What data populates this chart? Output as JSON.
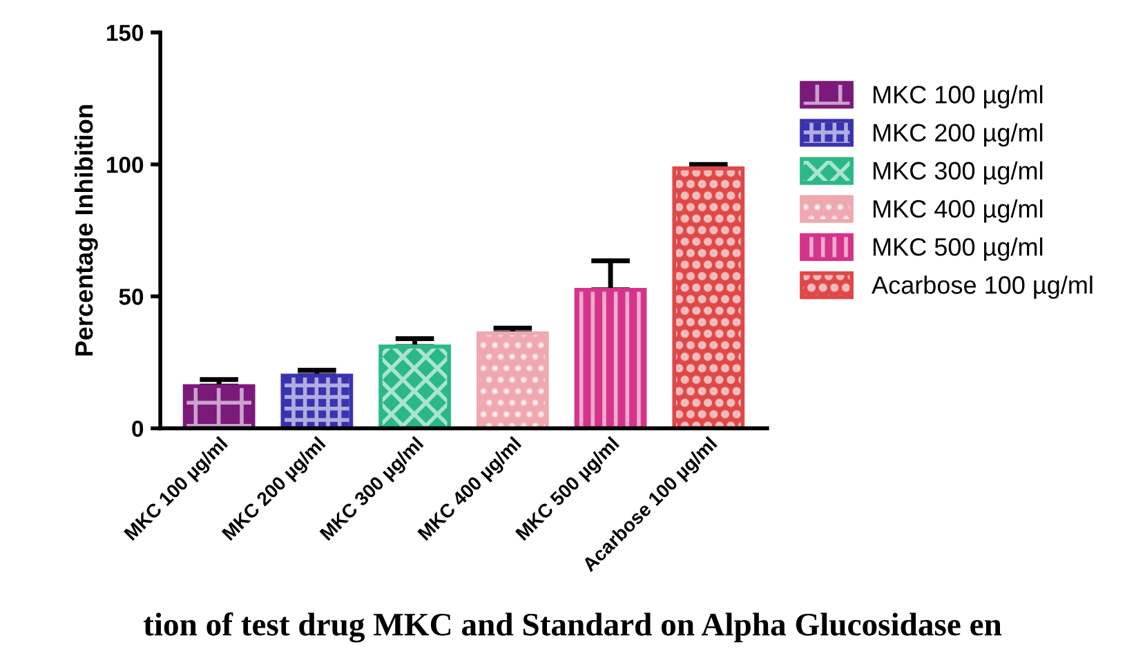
{
  "chart_data": {
    "type": "bar",
    "ylabel": "Percentage Inhibition",
    "categories": [
      "MKC 100 µg/ml",
      "MKC 200 µg/ml",
      "MKC 300 µg/ml",
      "MKC 400 µg/ml",
      "MKC 500 µg/ml",
      "Acarbose 100 µg/ml"
    ],
    "series": [
      {
        "name": "MKC 100 µg/ml",
        "color": "#7b1a7b",
        "values": [
          16,
          null,
          null,
          null,
          null,
          null
        ],
        "errors": [
          [
            16,
            18.5
          ],
          null,
          null,
          null,
          null,
          null
        ]
      },
      {
        "name": "MKC 200 µg/ml",
        "color": "#3a33b0",
        "values": [
          null,
          20,
          null,
          null,
          null,
          null
        ],
        "errors": [
          null,
          [
            20,
            22
          ],
          null,
          null,
          null,
          null
        ]
      },
      {
        "name": "MKC 300 µg/ml",
        "color": "#2ab889",
        "values": [
          null,
          null,
          31,
          null,
          null,
          null
        ],
        "errors": [
          null,
          null,
          [
            31,
            34
          ],
          null,
          null,
          null
        ]
      },
      {
        "name": "MKC 400 µg/ml",
        "color": "#f0a8b0",
        "values": [
          null,
          null,
          null,
          36,
          null,
          null
        ],
        "errors": [
          null,
          null,
          null,
          [
            36,
            38
          ],
          null,
          null
        ]
      },
      {
        "name": "MKC 500 µg/ml",
        "color": "#d6338a",
        "values": [
          null,
          null,
          null,
          null,
          52.5,
          null
        ],
        "errors": [
          null,
          null,
          null,
          null,
          [
            52.5,
            63.5
          ],
          null
        ]
      },
      {
        "name": "Acarbose 100 µg/ml",
        "color": "#e04848",
        "values": [
          null,
          null,
          null,
          null,
          null,
          98.5
        ],
        "errors": [
          null,
          null,
          null,
          null,
          null,
          [
            98.5,
            100
          ]
        ]
      }
    ],
    "ylim": [
      0,
      150
    ],
    "yticks": [
      0,
      50,
      100,
      150
    ],
    "grid": false,
    "legend": "right",
    "annotations": [
      "tion of test drug MKC and Standard on Alpha Glucosidase en"
    ]
  }
}
